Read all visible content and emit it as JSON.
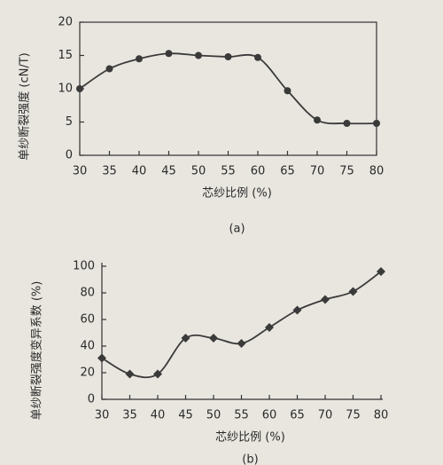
{
  "chart_data": [
    {
      "type": "line",
      "ylabel": "单纱断裂强度 (cN/T)",
      "xlabel": "芯纱比例 (%)",
      "caption": "(a)",
      "x": [
        30,
        35,
        40,
        45,
        50,
        55,
        60,
        65,
        70,
        75,
        80
      ],
      "series": [
        {
          "color": "#3a3a3a",
          "values": [
            10,
            13,
            14.5,
            15.3,
            15,
            14.8,
            14.7,
            9.7,
            5.3,
            4.8,
            4.8
          ]
        }
      ],
      "xlim": [
        30,
        80
      ],
      "xticks": [
        30,
        35,
        40,
        45,
        50,
        55,
        60,
        65,
        70,
        75,
        80
      ],
      "ylim": [
        0,
        20
      ],
      "yticks": [
        0,
        5,
        10,
        15,
        20
      ],
      "frame": "box"
    },
    {
      "type": "line",
      "ylabel": "单纱断裂强度变异系数 (%)",
      "xlabel": "芯纱比例 (%)",
      "caption": "(b)",
      "x": [
        30,
        35,
        40,
        45,
        50,
        55,
        60,
        65,
        70,
        75,
        80
      ],
      "series": [
        {
          "color": "#3a3a3a",
          "values": [
            31,
            19,
            19,
            46,
            46,
            42,
            54,
            67,
            75,
            81,
            96
          ]
        }
      ],
      "xlim": [
        30,
        80
      ],
      "xticks": [
        30,
        35,
        40,
        45,
        50,
        55,
        60,
        65,
        70,
        75,
        80
      ],
      "ylim": [
        0,
        100
      ],
      "yticks": [
        0,
        20,
        40,
        60,
        80,
        100
      ],
      "frame": "open"
    }
  ]
}
